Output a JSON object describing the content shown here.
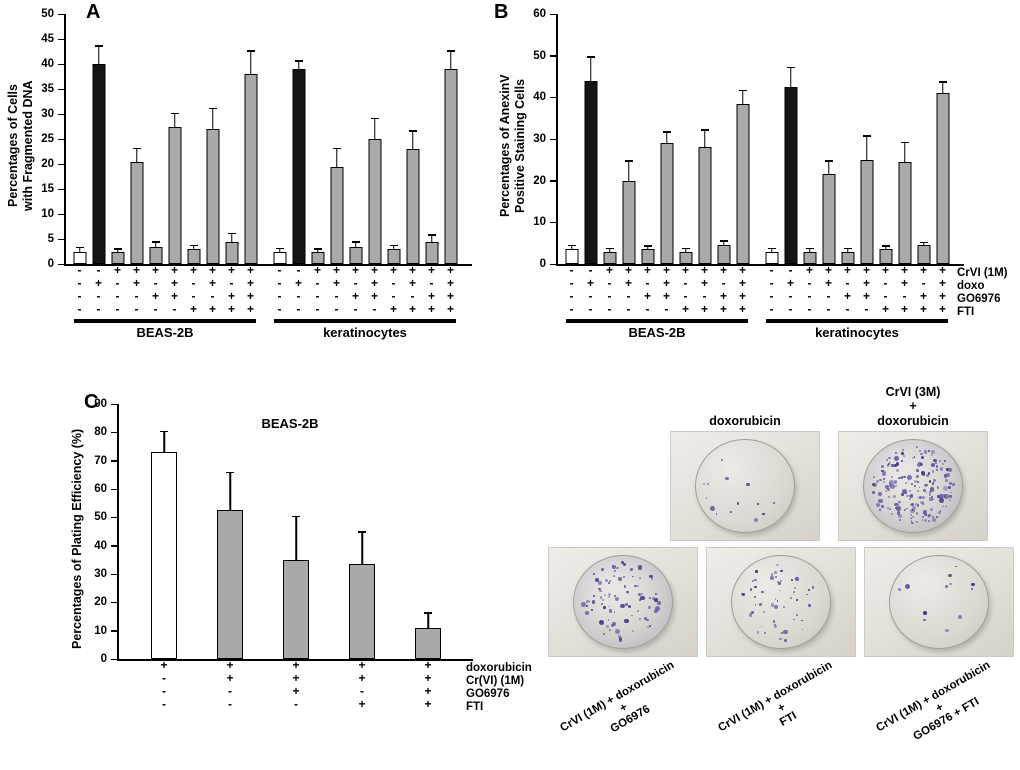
{
  "colors": {
    "white": "#ffffff",
    "black": "#141414",
    "gray": "#a9a9a9"
  },
  "colony_colors": [
    "#4a3d8f",
    "#5a4c9e",
    "#6c5fae",
    "#39307a",
    "#7a6fb5"
  ],
  "chart_data": [
    {
      "type": "bar",
      "panel_letter": "A",
      "ylabel": "Percentages of Cells\nwith Fragmented DNA",
      "ylim": [
        0,
        50
      ],
      "ytick_step": 5,
      "grid": false,
      "groups": [
        {
          "name": "BEAS-2B",
          "bars": [
            {
              "value": 2.5,
              "err": 0.7,
              "fill": "white",
              "signs": [
                "-",
                "-",
                "-",
                "-"
              ]
            },
            {
              "value": 40,
              "err": 3.5,
              "fill": "black",
              "signs": [
                "-",
                "+",
                "-",
                "-"
              ]
            },
            {
              "value": 2.5,
              "err": 0.4,
              "fill": "gray",
              "signs": [
                "+",
                "-",
                "-",
                "-"
              ]
            },
            {
              "value": 20.5,
              "err": 2.5,
              "fill": "gray",
              "signs": [
                "+",
                "+",
                "-",
                "-"
              ]
            },
            {
              "value": 3.5,
              "err": 0.8,
              "fill": "gray",
              "signs": [
                "+",
                "-",
                "+",
                "-"
              ]
            },
            {
              "value": 27.5,
              "err": 2.5,
              "fill": "gray",
              "signs": [
                "+",
                "+",
                "+",
                "-"
              ]
            },
            {
              "value": 3,
              "err": 0.6,
              "fill": "gray",
              "signs": [
                "+",
                "-",
                "-",
                "+"
              ]
            },
            {
              "value": 27,
              "err": 4,
              "fill": "gray",
              "signs": [
                "+",
                "+",
                "-",
                "+"
              ]
            },
            {
              "value": 4.5,
              "err": 1.5,
              "fill": "gray",
              "signs": [
                "+",
                "-",
                "+",
                "+"
              ]
            },
            {
              "value": 38,
              "err": 4.5,
              "fill": "gray",
              "signs": [
                "+",
                "+",
                "+",
                "+"
              ]
            }
          ]
        },
        {
          "name": "keratinocytes",
          "bars": [
            {
              "value": 2.5,
              "err": 0.5,
              "fill": "white",
              "signs": [
                "-",
                "-",
                "-",
                "-"
              ]
            },
            {
              "value": 39,
              "err": 1.5,
              "fill": "black",
              "signs": [
                "-",
                "+",
                "-",
                "-"
              ]
            },
            {
              "value": 2.5,
              "err": 0.4,
              "fill": "gray",
              "signs": [
                "+",
                "-",
                "-",
                "-"
              ]
            },
            {
              "value": 19.5,
              "err": 3.5,
              "fill": "gray",
              "signs": [
                "+",
                "+",
                "-",
                "-"
              ]
            },
            {
              "value": 3.5,
              "err": 0.8,
              "fill": "gray",
              "signs": [
                "+",
                "-",
                "+",
                "-"
              ]
            },
            {
              "value": 25,
              "err": 4,
              "fill": "gray",
              "signs": [
                "+",
                "+",
                "+",
                "-"
              ]
            },
            {
              "value": 3,
              "err": 0.6,
              "fill": "gray",
              "signs": [
                "+",
                "-",
                "-",
                "+"
              ]
            },
            {
              "value": 23,
              "err": 3.5,
              "fill": "gray",
              "signs": [
                "+",
                "+",
                "-",
                "+"
              ]
            },
            {
              "value": 4.5,
              "err": 1.2,
              "fill": "gray",
              "signs": [
                "+",
                "-",
                "+",
                "+"
              ]
            },
            {
              "value": 39,
              "err": 3.5,
              "fill": "gray",
              "signs": [
                "+",
                "+",
                "+",
                "+"
              ]
            }
          ]
        }
      ]
    },
    {
      "type": "bar",
      "panel_letter": "B",
      "ylabel": "Percentages of AnexinV\nPositive Staining Cells",
      "ylim": [
        0,
        60
      ],
      "ytick_step": 10,
      "grid": false,
      "row_labels": [
        "CrVI (1M)",
        "doxo",
        "GO6976",
        "FTI"
      ],
      "groups": [
        {
          "name": "BEAS-2B",
          "bars": [
            {
              "value": 3.5,
              "err": 0.8,
              "fill": "white",
              "signs": [
                "-",
                "-",
                "-",
                "-"
              ]
            },
            {
              "value": 44,
              "err": 5.5,
              "fill": "black",
              "signs": [
                "-",
                "+",
                "-",
                "-"
              ]
            },
            {
              "value": 3,
              "err": 0.5,
              "fill": "gray",
              "signs": [
                "+",
                "-",
                "-",
                "-"
              ]
            },
            {
              "value": 20,
              "err": 4.5,
              "fill": "gray",
              "signs": [
                "+",
                "+",
                "-",
                "-"
              ]
            },
            {
              "value": 3.5,
              "err": 0.6,
              "fill": "gray",
              "signs": [
                "+",
                "-",
                "+",
                "-"
              ]
            },
            {
              "value": 29,
              "err": 2.5,
              "fill": "gray",
              "signs": [
                "+",
                "+",
                "+",
                "-"
              ]
            },
            {
              "value": 3,
              "err": 0.5,
              "fill": "gray",
              "signs": [
                "+",
                "-",
                "-",
                "+"
              ]
            },
            {
              "value": 28,
              "err": 4,
              "fill": "gray",
              "signs": [
                "+",
                "+",
                "-",
                "+"
              ]
            },
            {
              "value": 4.5,
              "err": 0.8,
              "fill": "gray",
              "signs": [
                "+",
                "-",
                "+",
                "+"
              ]
            },
            {
              "value": 38.5,
              "err": 3,
              "fill": "gray",
              "signs": [
                "+",
                "+",
                "+",
                "+"
              ]
            }
          ]
        },
        {
          "name": "keratinocytes",
          "bars": [
            {
              "value": 3,
              "err": 0.5,
              "fill": "white",
              "signs": [
                "-",
                "-",
                "-",
                "-"
              ]
            },
            {
              "value": 42.5,
              "err": 4.5,
              "fill": "black",
              "signs": [
                "-",
                "+",
                "-",
                "-"
              ]
            },
            {
              "value": 3,
              "err": 0.5,
              "fill": "gray",
              "signs": [
                "+",
                "-",
                "-",
                "-"
              ]
            },
            {
              "value": 21.5,
              "err": 3,
              "fill": "gray",
              "signs": [
                "+",
                "+",
                "-",
                "-"
              ]
            },
            {
              "value": 3,
              "err": 0.5,
              "fill": "gray",
              "signs": [
                "+",
                "-",
                "+",
                "-"
              ]
            },
            {
              "value": 25,
              "err": 5.5,
              "fill": "gray",
              "signs": [
                "+",
                "+",
                "+",
                "-"
              ]
            },
            {
              "value": 3.5,
              "err": 0.7,
              "fill": "gray",
              "signs": [
                "+",
                "-",
                "-",
                "+"
              ]
            },
            {
              "value": 24.5,
              "err": 4.5,
              "fill": "gray",
              "signs": [
                "+",
                "+",
                "-",
                "+"
              ]
            },
            {
              "value": 4.5,
              "err": 0.5,
              "fill": "gray",
              "signs": [
                "+",
                "-",
                "+",
                "+"
              ]
            },
            {
              "value": 41,
              "err": 2.5,
              "fill": "gray",
              "signs": [
                "+",
                "+",
                "+",
                "+"
              ]
            }
          ]
        }
      ]
    },
    {
      "type": "bar",
      "panel_letter": "C",
      "title": "BEAS-2B",
      "ylabel": "Percentages of Plating Efficiency (%)",
      "ylim": [
        0,
        90
      ],
      "ytick_step": 10,
      "grid": false,
      "row_labels": [
        "doxorubicin",
        "Cr(VI) (1M)",
        "GO6976",
        "FTI"
      ],
      "groups": [
        {
          "name": "",
          "bars": [
            {
              "value": 73,
              "err": 7,
              "fill": "white",
              "signs": [
                "+",
                "-",
                "-",
                "-"
              ]
            },
            {
              "value": 52.5,
              "err": 13,
              "fill": "gray",
              "signs": [
                "+",
                "+",
                "-",
                "-"
              ]
            },
            {
              "value": 35,
              "err": 15,
              "fill": "gray",
              "signs": [
                "+",
                "+",
                "+",
                "-"
              ]
            },
            {
              "value": 33.5,
              "err": 11,
              "fill": "gray",
              "signs": [
                "+",
                "+",
                "-",
                "+"
              ]
            },
            {
              "value": 11,
              "err": 5,
              "fill": "gray",
              "signs": [
                "+",
                "+",
                "+",
                "+"
              ]
            }
          ]
        }
      ]
    }
  ],
  "colony_assay": {
    "top_row": [
      {
        "label": "doxorubicin",
        "colonies": 14,
        "density": "sparse"
      },
      {
        "label": "CrVI (3M)\n+\ndoxorubicin",
        "colonies": 190,
        "density": "dense"
      }
    ],
    "bottom_row": [
      {
        "label": "CrVI (1M) + doxorubicin\n+\nGO6976",
        "colonies": 85,
        "density": "moderate"
      },
      {
        "label": "CrVI (1M) + doxorubicin\n+\nFTI",
        "colonies": 55,
        "density": "moderate"
      },
      {
        "label": "CrVI (1M) + doxorubicin\n+\nGO6976 + FTI",
        "colonies": 12,
        "density": "sparse"
      }
    ]
  }
}
